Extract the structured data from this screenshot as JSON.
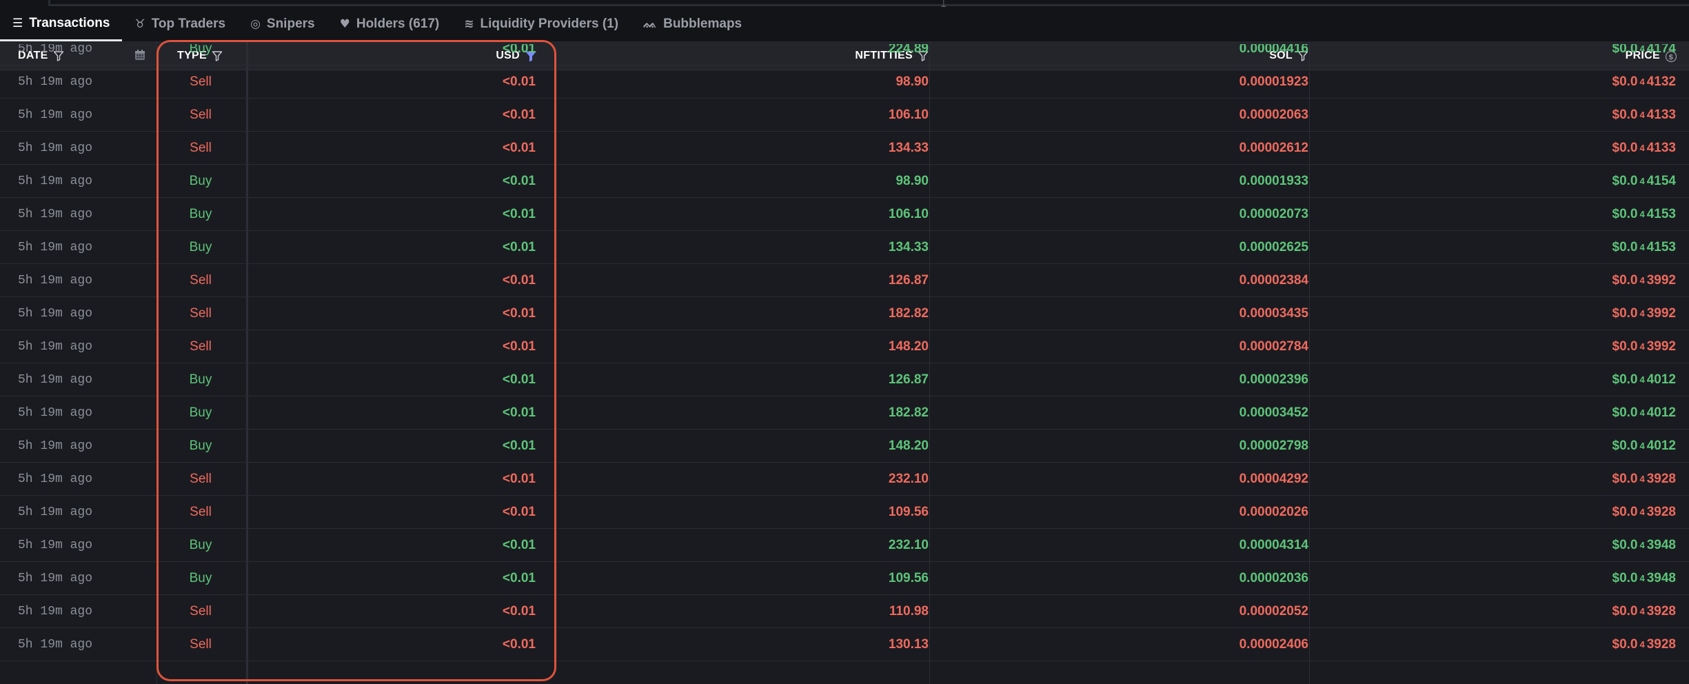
{
  "tabs": [
    {
      "label": "Transactions",
      "icon": "list-icon",
      "glyph": "☰",
      "active": true
    },
    {
      "label": "Top Traders",
      "icon": "medal-icon",
      "glyph": "♉",
      "active": false
    },
    {
      "label": "Snipers",
      "icon": "target-icon",
      "glyph": "◎",
      "active": false
    },
    {
      "label": "Holders (617)",
      "icon": "heart-icon",
      "glyph": "♥",
      "active": false
    },
    {
      "label": "Liquidity Providers (1)",
      "icon": "liquidity-icon",
      "glyph": "≋",
      "active": false
    },
    {
      "label": "Bubblemaps",
      "icon": "bubblemaps-icon",
      "glyph": "ᨐ",
      "active": false
    }
  ],
  "columns": {
    "date": "DATE",
    "type": "TYPE",
    "usd": "USD",
    "token": "NFTITTIES",
    "sol": "SOL",
    "price": "PRICE"
  },
  "colors": {
    "buy": "#5dc47a",
    "sell": "#ef6a5e",
    "filter_active": "#7b8cff",
    "highlight": "#e0533c"
  },
  "partial_row": {
    "date": "5h 19m ago",
    "type": "Buy",
    "usd": "<0.01",
    "token": "224.89",
    "sol": "0.00004416",
    "price_prefix": "$0.0",
    "price_sub": "4",
    "price_tail": "4174"
  },
  "rows": [
    {
      "date": "5h 19m ago",
      "type": "Sell",
      "usd": "<0.01",
      "token": "98.90",
      "sol": "0.00001923",
      "price_prefix": "$0.0",
      "price_sub": "4",
      "price_tail": "4132"
    },
    {
      "date": "5h 19m ago",
      "type": "Sell",
      "usd": "<0.01",
      "token": "106.10",
      "sol": "0.00002063",
      "price_prefix": "$0.0",
      "price_sub": "4",
      "price_tail": "4133"
    },
    {
      "date": "5h 19m ago",
      "type": "Sell",
      "usd": "<0.01",
      "token": "134.33",
      "sol": "0.00002612",
      "price_prefix": "$0.0",
      "price_sub": "4",
      "price_tail": "4133"
    },
    {
      "date": "5h 19m ago",
      "type": "Buy",
      "usd": "<0.01",
      "token": "98.90",
      "sol": "0.00001933",
      "price_prefix": "$0.0",
      "price_sub": "4",
      "price_tail": "4154"
    },
    {
      "date": "5h 19m ago",
      "type": "Buy",
      "usd": "<0.01",
      "token": "106.10",
      "sol": "0.00002073",
      "price_prefix": "$0.0",
      "price_sub": "4",
      "price_tail": "4153"
    },
    {
      "date": "5h 19m ago",
      "type": "Buy",
      "usd": "<0.01",
      "token": "134.33",
      "sol": "0.00002625",
      "price_prefix": "$0.0",
      "price_sub": "4",
      "price_tail": "4153"
    },
    {
      "date": "5h 19m ago",
      "type": "Sell",
      "usd": "<0.01",
      "token": "126.87",
      "sol": "0.00002384",
      "price_prefix": "$0.0",
      "price_sub": "4",
      "price_tail": "3992"
    },
    {
      "date": "5h 19m ago",
      "type": "Sell",
      "usd": "<0.01",
      "token": "182.82",
      "sol": "0.00003435",
      "price_prefix": "$0.0",
      "price_sub": "4",
      "price_tail": "3992"
    },
    {
      "date": "5h 19m ago",
      "type": "Sell",
      "usd": "<0.01",
      "token": "148.20",
      "sol": "0.00002784",
      "price_prefix": "$0.0",
      "price_sub": "4",
      "price_tail": "3992"
    },
    {
      "date": "5h 19m ago",
      "type": "Buy",
      "usd": "<0.01",
      "token": "126.87",
      "sol": "0.00002396",
      "price_prefix": "$0.0",
      "price_sub": "4",
      "price_tail": "4012"
    },
    {
      "date": "5h 19m ago",
      "type": "Buy",
      "usd": "<0.01",
      "token": "182.82",
      "sol": "0.00003452",
      "price_prefix": "$0.0",
      "price_sub": "4",
      "price_tail": "4012"
    },
    {
      "date": "5h 19m ago",
      "type": "Buy",
      "usd": "<0.01",
      "token": "148.20",
      "sol": "0.00002798",
      "price_prefix": "$0.0",
      "price_sub": "4",
      "price_tail": "4012"
    },
    {
      "date": "5h 19m ago",
      "type": "Sell",
      "usd": "<0.01",
      "token": "232.10",
      "sol": "0.00004292",
      "price_prefix": "$0.0",
      "price_sub": "4",
      "price_tail": "3928"
    },
    {
      "date": "5h 19m ago",
      "type": "Sell",
      "usd": "<0.01",
      "token": "109.56",
      "sol": "0.00002026",
      "price_prefix": "$0.0",
      "price_sub": "4",
      "price_tail": "3928"
    },
    {
      "date": "5h 19m ago",
      "type": "Buy",
      "usd": "<0.01",
      "token": "232.10",
      "sol": "0.00004314",
      "price_prefix": "$0.0",
      "price_sub": "4",
      "price_tail": "3948"
    },
    {
      "date": "5h 19m ago",
      "type": "Buy",
      "usd": "<0.01",
      "token": "109.56",
      "sol": "0.00002036",
      "price_prefix": "$0.0",
      "price_sub": "4",
      "price_tail": "3948"
    },
    {
      "date": "5h 19m ago",
      "type": "Sell",
      "usd": "<0.01",
      "token": "110.98",
      "sol": "0.00002052",
      "price_prefix": "$0.0",
      "price_sub": "4",
      "price_tail": "3928"
    },
    {
      "date": "5h 19m ago",
      "type": "Sell",
      "usd": "<0.01",
      "token": "130.13",
      "sol": "0.00002406",
      "price_prefix": "$0.0",
      "price_sub": "4",
      "price_tail": "3928"
    }
  ]
}
